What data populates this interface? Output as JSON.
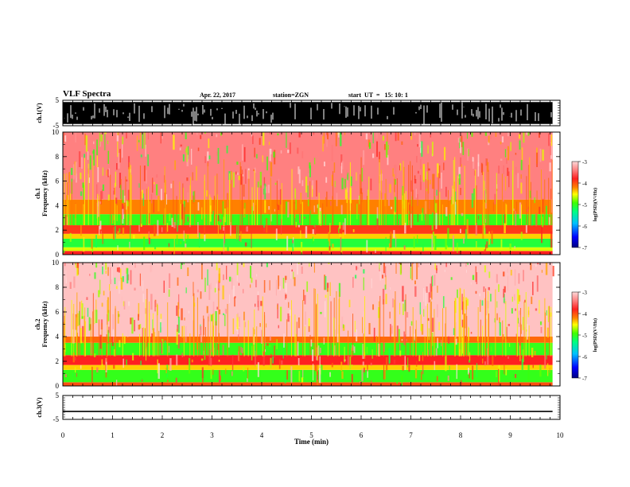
{
  "header": {
    "title": "VLF Spectra",
    "date": "Apr. 22, 2017",
    "station": "station=ZGN",
    "start": "start  UT  =   15: 10: 1"
  },
  "colors": {
    "scale": [
      "#000080",
      "#0000ff",
      "#00c0ff",
      "#00ff80",
      "#40ff00",
      "#ffff00",
      "#ff8000",
      "#ff2020",
      "#ff8080",
      "#ffd0d0"
    ],
    "trace": "#000000",
    "axes": "#000000"
  },
  "chart_data": [
    {
      "type": "line",
      "panel": "ch1-waveform",
      "ylabel": "ch.1(V)",
      "ylim": [
        -5,
        5
      ],
      "yticks": [
        "5",
        "-5"
      ],
      "description_of_signal": "dense black noise filling most of the range",
      "envelope": [
        -4.3,
        4.3
      ]
    },
    {
      "type": "heatmap",
      "panel": "ch1-spectrogram",
      "ylabel": "ch.1\nFrequency  (kHz)",
      "ylim": [
        0,
        10
      ],
      "yticks": [
        "0",
        "2",
        "4",
        "6",
        "8",
        "10"
      ],
      "z_label": "log(PSD)(V²/Hz)",
      "zlim": [
        -7,
        -3
      ],
      "ztick_labels": [
        "-3",
        "-4",
        "-5",
        "-6",
        "-7"
      ],
      "bands_khz": [
        {
          "from": 0.0,
          "to": 0.3,
          "log_psd": -3.8
        },
        {
          "from": 0.3,
          "to": 0.6,
          "log_psd": -4.6
        },
        {
          "from": 0.6,
          "to": 1.3,
          "log_psd": -5.1
        },
        {
          "from": 1.3,
          "to": 1.7,
          "log_psd": -4.4
        },
        {
          "from": 1.7,
          "to": 2.4,
          "log_psd": -3.9
        },
        {
          "from": 2.4,
          "to": 3.3,
          "log_psd": -5.0
        },
        {
          "from": 3.3,
          "to": 4.5,
          "log_psd": -4.2
        },
        {
          "from": 4.5,
          "to": 10.0,
          "log_psd": -3.4
        }
      ]
    },
    {
      "type": "heatmap",
      "panel": "ch2-spectrogram",
      "ylabel": "ch.2\nFrequency  (kHz)",
      "ylim": [
        0,
        10
      ],
      "yticks": [
        "0",
        "2",
        "4",
        "6",
        "8",
        "10"
      ],
      "z_label": "log(PSD)(V²/Hz)",
      "zlim": [
        -7,
        -3
      ],
      "ztick_labels": [
        "-3",
        "-4",
        "-5",
        "-6",
        "-7"
      ],
      "bands_khz": [
        {
          "from": 0.0,
          "to": 0.3,
          "log_psd": -4.0
        },
        {
          "from": 0.3,
          "to": 1.3,
          "log_psd": -5.0
        },
        {
          "from": 1.3,
          "to": 1.7,
          "log_psd": -4.4
        },
        {
          "from": 1.7,
          "to": 2.5,
          "log_psd": -3.8
        },
        {
          "from": 2.5,
          "to": 3.5,
          "log_psd": -5.0
        },
        {
          "from": 3.5,
          "to": 4.0,
          "log_psd": -4.1
        },
        {
          "from": 4.0,
          "to": 10.0,
          "log_psd": -3.1
        }
      ]
    },
    {
      "type": "line",
      "panel": "ch3-waveform",
      "ylabel": "ch.3(V)",
      "ylim": [
        -5,
        5
      ],
      "yticks": [
        "5",
        "-5"
      ],
      "y_constant": -1.7
    }
  ],
  "xaxis": {
    "label": "Time  (min)",
    "ticks": [
      "0",
      "1",
      "2",
      "3",
      "4",
      "5",
      "6",
      "7",
      "8",
      "9",
      "10"
    ],
    "xlim": [
      0,
      10
    ],
    "data_end": 9.85
  }
}
